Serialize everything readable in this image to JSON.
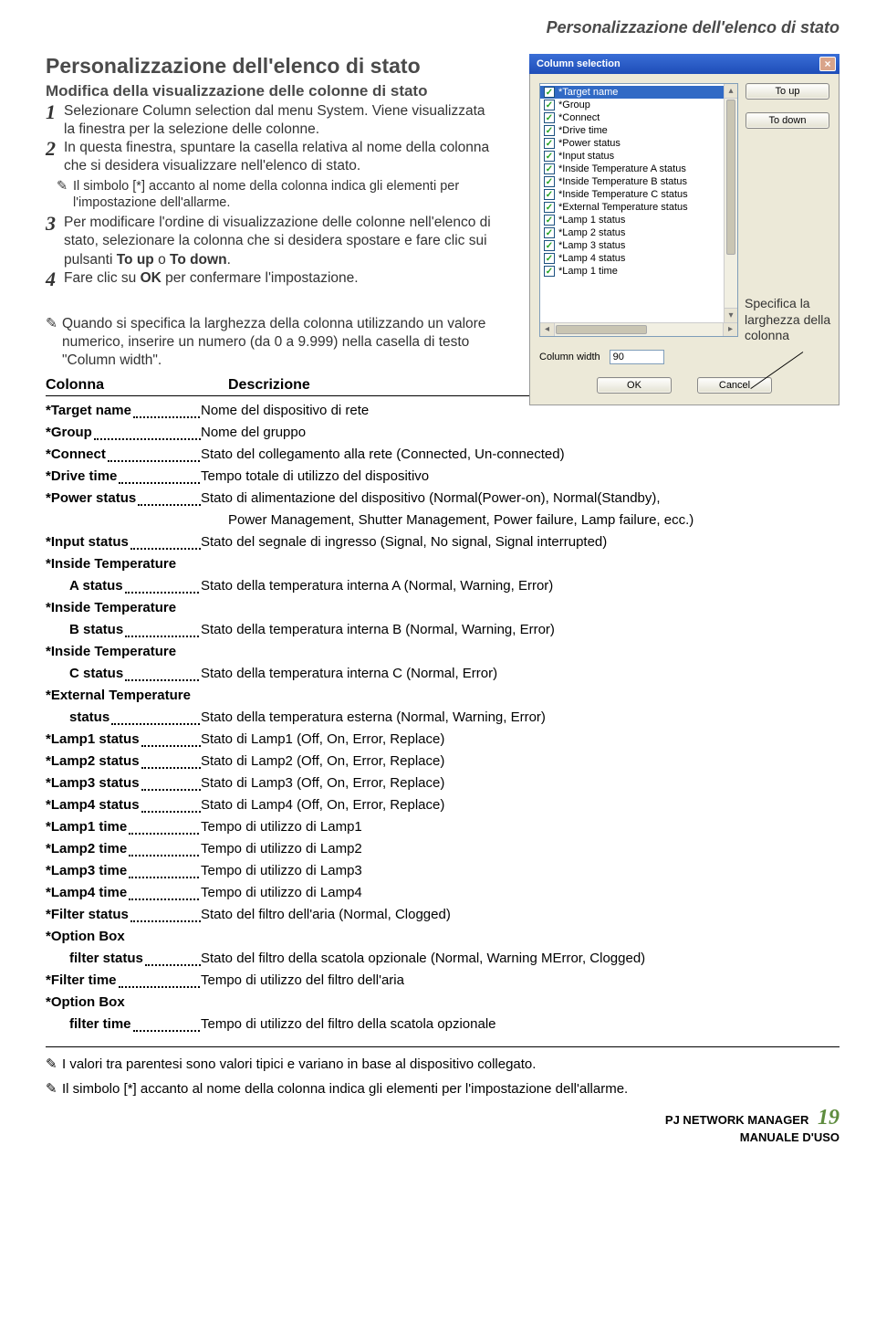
{
  "header": {
    "running": "Personalizzazione dell'elenco di stato"
  },
  "title": "Personalizzazione dell'elenco di stato",
  "subtitle": "Modifica della visualizzazione delle colonne di stato",
  "steps": {
    "s1": "Selezionare Column selection dal menu System. Viene visualizzata la finestra per la selezione delle colonne.",
    "s2": "In questa finestra, spuntare la casella relativa al nome della colonna che si desidera visualizzare nell'elenco di stato.",
    "note1": "Il simbolo [*] accanto al nome della colonna indica gli elementi per l'impostazione dell'allarme.",
    "s3_a": "Per modificare l'ordine di visualizzazione delle colonne nell'elenco di stato, selezionare la colonna che si desidera spostare e fare clic sui pulsanti ",
    "s3_b1": "To up",
    "s3_mid": " o ",
    "s3_b2": "To down",
    "s3_end": ".",
    "s4_a": "Fare clic su ",
    "s4_b": "OK",
    "s4_c": " per confermare l'impostazione."
  },
  "dialog": {
    "title": "Column selection",
    "items": [
      "*Target name",
      "*Group",
      "*Connect",
      "*Drive time",
      "*Power status",
      "*Input status",
      "*Inside Temperature A status",
      "*Inside Temperature B status",
      "*Inside Temperature C status",
      "*External Temperature status",
      "*Lamp 1 status",
      "*Lamp 2 status",
      "*Lamp 3 status",
      "*Lamp 4 status",
      "*Lamp 1 time"
    ],
    "btn_up": "To up",
    "btn_down": "To down",
    "cw_label": "Column width",
    "cw_value": "90",
    "ok": "OK",
    "cancel": "Cancel"
  },
  "callout": "Specifica la larghezza della colonna",
  "note2": "Quando si specifica la larghezza della colonna utilizzando un valore numerico, inserire un numero (da 0 a 9.999) nella casella di testo \"Column width\".",
  "colhdr": {
    "c1": "Colonna",
    "c2": "Descrizione"
  },
  "rows": [
    {
      "l": "*Target name",
      "d": "Nome del dispositivo di rete"
    },
    {
      "l": "*Group",
      "d": "Nome del gruppo"
    },
    {
      "l": "*Connect",
      "d": "Stato del collegamento alla rete (Connected, Un-connected)"
    },
    {
      "l": "*Drive time",
      "d": "Tempo totale di utilizzo del dispositivo"
    },
    {
      "l": "*Power status",
      "d": "Stato di alimentazione del dispositivo (Normal(Power-on), Normal(Standby), Power Management, Shutter Management, Power failure, Lamp failure, ecc.)",
      "cont": true
    },
    {
      "l": "*Input status",
      "d": "Stato del segnale di ingresso (Signal, No signal, Signal interrupted)"
    },
    {
      "g": "*Inside Temperature",
      "l": "A status",
      "d": "Stato della temperatura interna A (Normal, Warning, Error)"
    },
    {
      "g": "*Inside Temperature",
      "l": "B status",
      "d": "Stato della temperatura interna B (Normal, Warning, Error)"
    },
    {
      "g": "*Inside Temperature",
      "l": "C status",
      "d": "Stato della temperatura interna C (Normal, Error)"
    },
    {
      "g": "*External Temperature",
      "l": "status",
      "d": "Stato della temperatura esterna (Normal, Warning, Error)"
    },
    {
      "l": "*Lamp1 status",
      "d": "Stato di Lamp1 (Off, On, Error, Replace)"
    },
    {
      "l": "*Lamp2 status",
      "d": "Stato di Lamp2 (Off, On, Error, Replace)"
    },
    {
      "l": "*Lamp3 status",
      "d": "Stato di Lamp3 (Off, On, Error, Replace)"
    },
    {
      "l": "*Lamp4 status",
      "d": "Stato di Lamp4 (Off, On, Error, Replace)"
    },
    {
      "l": "*Lamp1 time",
      "d": "Tempo di utilizzo di Lamp1"
    },
    {
      "l": "*Lamp2 time",
      "d": "Tempo di utilizzo di Lamp2"
    },
    {
      "l": "*Lamp3 time",
      "d": "Tempo di utilizzo di Lamp3"
    },
    {
      "l": "*Lamp4 time",
      "d": "Tempo di utilizzo di Lamp4"
    },
    {
      "l": "*Filter status",
      "d": "Stato del filtro dell'aria (Normal, Clogged)"
    },
    {
      "g": "*Option Box",
      "l": "filter status",
      "d": "Stato del filtro della scatola opzionale (Normal, Warning MError, Clogged)"
    },
    {
      "l": "*Filter time",
      "d": "Tempo di utilizzo del filtro dell'aria"
    },
    {
      "g": "*Option Box",
      "l": "filter time",
      "d": "Tempo di utilizzo del filtro della scatola opzionale"
    }
  ],
  "bnote1": "I valori tra parentesi sono valori tipici e variano in base al dispositivo collegato.",
  "bnote2": "Il simbolo [*] accanto al nome della colonna indica gli elementi per l'impostazione dell'allarme.",
  "footer": {
    "l1": "PJ NETWORK MANAGER",
    "l2": "MANUALE D'USO",
    "page": "19"
  }
}
